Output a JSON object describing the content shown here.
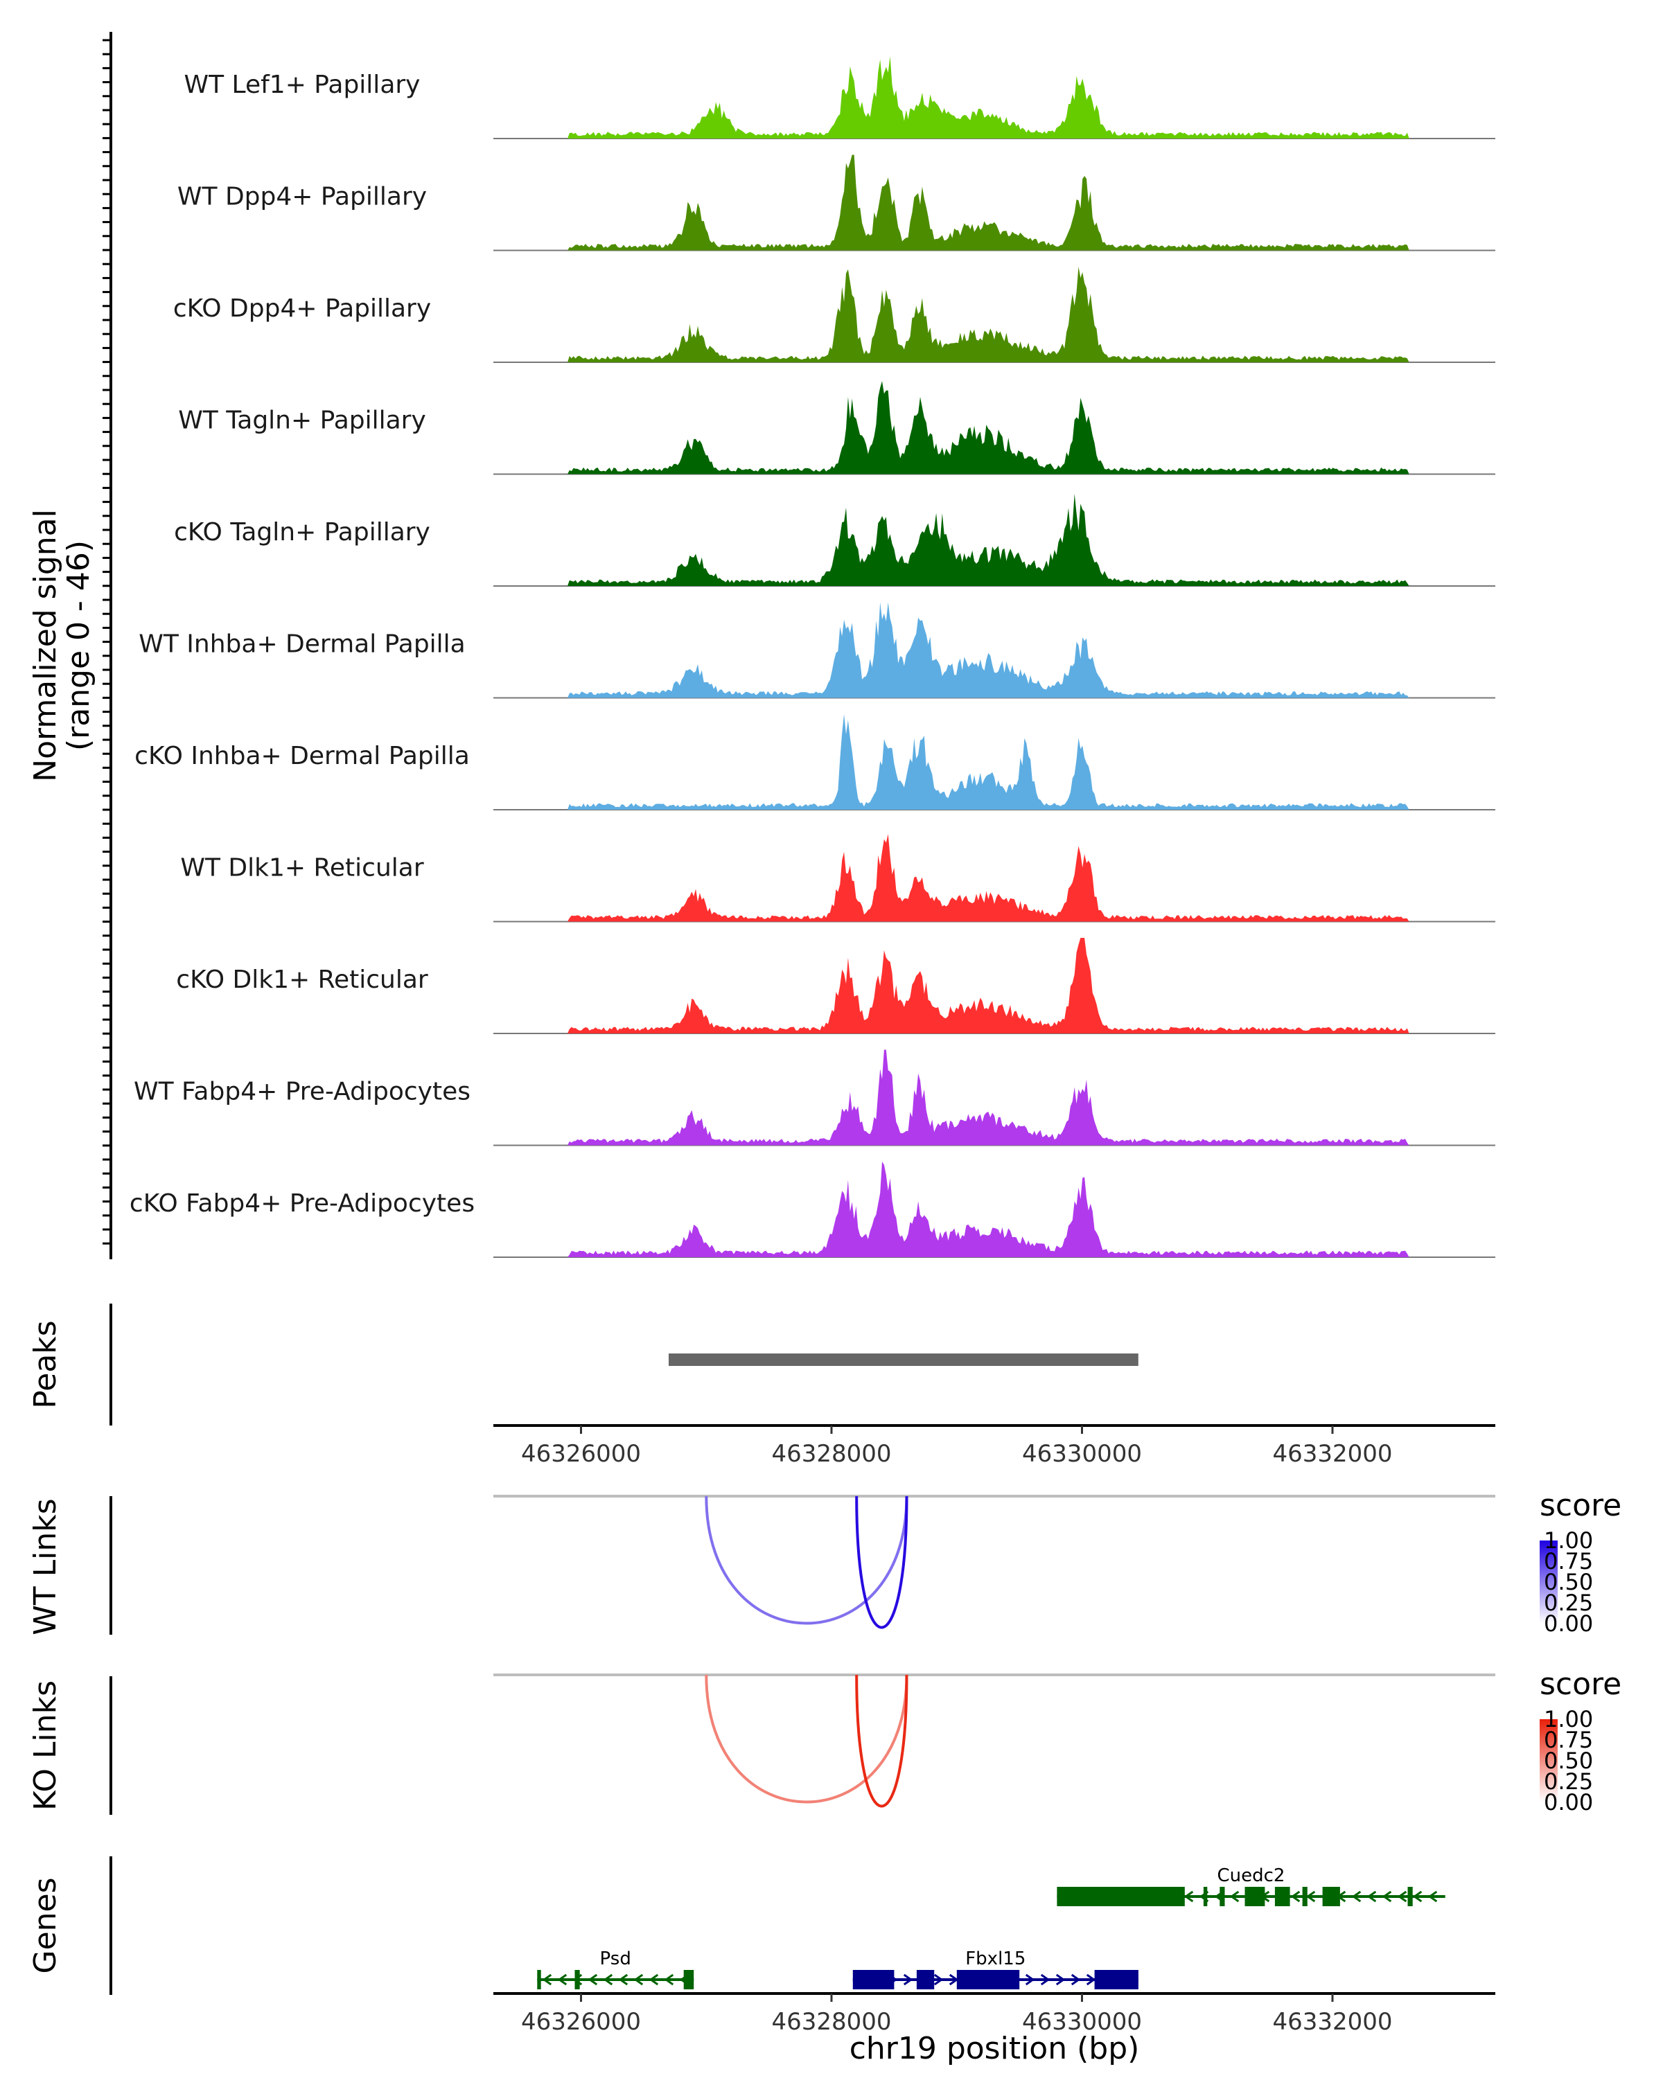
{
  "chart_data": {
    "type": "area",
    "region": {
      "chrom": "chr19",
      "start": 46325300,
      "end": 46333300
    },
    "xlabel": "chr19 position (bp)",
    "xticks": [
      46326000,
      46328000,
      46330000,
      46332000
    ],
    "signal_axis_label": "Normalized signal",
    "signal_axis_range": "(range 0 - 46)",
    "ylim": [
      0,
      46
    ],
    "tracks": [
      {
        "name": "WT Lef1+ Papillary",
        "color": "#66CC00",
        "peaks": [
          [
            46328150,
            28,
            70
          ],
          [
            46328430,
            36,
            70
          ],
          [
            46328750,
            18,
            110
          ],
          [
            46330000,
            26,
            90
          ],
          [
            46327070,
            14,
            90
          ],
          [
            46329200,
            10,
            200
          ]
        ]
      },
      {
        "name": "WT Dpp4+ Papillary",
        "color": "#4C8C00",
        "peaks": [
          [
            46328150,
            42,
            60
          ],
          [
            46328430,
            40,
            60
          ],
          [
            46328700,
            26,
            50
          ],
          [
            46330020,
            28,
            70
          ],
          [
            46326900,
            22,
            70
          ],
          [
            46329200,
            10,
            250
          ]
        ]
      },
      {
        "name": "cKO Dpp4+ Papillary",
        "color": "#4C8C00",
        "peaks": [
          [
            46328120,
            40,
            60
          ],
          [
            46328430,
            34,
            60
          ],
          [
            46328700,
            22,
            60
          ],
          [
            46330000,
            46,
            70
          ],
          [
            46326900,
            14,
            90
          ],
          [
            46329200,
            12,
            300
          ]
        ]
      },
      {
        "name": "WT Tagln+ Papillary",
        "color": "#006400",
        "peaks": [
          [
            46328170,
            36,
            60
          ],
          [
            46328420,
            46,
            60
          ],
          [
            46328700,
            30,
            70
          ],
          [
            46330000,
            30,
            70
          ],
          [
            46326900,
            14,
            80
          ],
          [
            46329200,
            18,
            250
          ]
        ]
      },
      {
        "name": "cKO Tagln+ Papillary",
        "color": "#006400",
        "peaks": [
          [
            46328120,
            30,
            80
          ],
          [
            46328420,
            28,
            80
          ],
          [
            46328800,
            28,
            120
          ],
          [
            46329950,
            34,
            110
          ],
          [
            46326900,
            12,
            100
          ],
          [
            46329300,
            14,
            300
          ]
        ]
      },
      {
        "name": "WT Inhba+ Dermal Papilla",
        "color": "#5DADE2",
        "peaks": [
          [
            46328120,
            38,
            70
          ],
          [
            46328420,
            44,
            70
          ],
          [
            46328700,
            30,
            90
          ],
          [
            46330000,
            24,
            90
          ],
          [
            46326900,
            12,
            100
          ],
          [
            46329200,
            16,
            300
          ]
        ]
      },
      {
        "name": "cKO Inhba+ Dermal Papilla",
        "color": "#5DADE2",
        "peaks": [
          [
            46328120,
            46,
            40
          ],
          [
            46328450,
            32,
            60
          ],
          [
            46328700,
            34,
            70
          ],
          [
            46329550,
            24,
            50
          ],
          [
            46330000,
            34,
            50
          ],
          [
            46329200,
            14,
            200
          ]
        ]
      },
      {
        "name": "WT Dlk1+ Reticular",
        "color": "#FF3030",
        "peaks": [
          [
            46328120,
            30,
            60
          ],
          [
            46328430,
            40,
            60
          ],
          [
            46328700,
            20,
            70
          ],
          [
            46330000,
            34,
            70
          ],
          [
            46326900,
            12,
            80
          ],
          [
            46329200,
            10,
            300
          ]
        ]
      },
      {
        "name": "cKO Dlk1+ Reticular",
        "color": "#FF3030",
        "peaks": [
          [
            46328120,
            30,
            70
          ],
          [
            46328430,
            32,
            70
          ],
          [
            46328700,
            20,
            80
          ],
          [
            46330000,
            44,
            70
          ],
          [
            46326900,
            12,
            80
          ],
          [
            46329200,
            12,
            300
          ]
        ]
      },
      {
        "name": "WT Fabp4+ Pre-Adipocytes",
        "color": "#B03AEC",
        "peaks": [
          [
            46328430,
            46,
            50
          ],
          [
            46328700,
            26,
            50
          ],
          [
            46328150,
            20,
            70
          ],
          [
            46330000,
            30,
            70
          ],
          [
            46326900,
            12,
            80
          ],
          [
            46329200,
            12,
            300
          ]
        ]
      },
      {
        "name": "cKO Fabp4+ Pre-Adipocytes",
        "color": "#B03AEC",
        "peaks": [
          [
            46328120,
            30,
            80
          ],
          [
            46328420,
            44,
            60
          ],
          [
            46328700,
            18,
            80
          ],
          [
            46330000,
            34,
            70
          ],
          [
            46326900,
            12,
            80
          ],
          [
            46329200,
            12,
            300
          ]
        ]
      }
    ],
    "peaks_track": {
      "label": "Peaks",
      "regions": [
        [
          46326700,
          46330450
        ]
      ],
      "color": "#666666"
    },
    "links": [
      {
        "label": "WT Links",
        "legend_title": "score",
        "color_low": "#FFFFFF",
        "color_high": "#1E00E0",
        "legend_ticks": [
          "1.00",
          "0.75",
          "0.50",
          "0.25",
          "0.00"
        ],
        "arcs": [
          {
            "start": 46327000,
            "end": 46328600,
            "score": 0.45
          },
          {
            "start": 46328200,
            "end": 46328600,
            "score": 0.95
          }
        ]
      },
      {
        "label": "KO Links",
        "legend_title": "score",
        "color_low": "#FFFFFF",
        "color_high": "#E8200A",
        "legend_ticks": [
          "1.00",
          "0.75",
          "0.50",
          "0.25",
          "0.00"
        ],
        "arcs": [
          {
            "start": 46327000,
            "end": 46328600,
            "score": 0.45
          },
          {
            "start": 46328200,
            "end": 46328600,
            "score": 0.95
          }
        ]
      }
    ],
    "genes_track": {
      "label": "Genes",
      "genes": [
        {
          "name": "Cuedc2",
          "start": 46329800,
          "end": 46332900,
          "strand": "-",
          "color": "#006400",
          "row": 0,
          "exons": [
            [
              46329800,
              46330820
            ],
            [
              46330970,
              46331000
            ],
            [
              46331100,
              46331140
            ],
            [
              46331300,
              46331460
            ],
            [
              46331540,
              46331660
            ],
            [
              46331760,
              46331800
            ],
            [
              46331920,
              46332060
            ],
            [
              46332600,
              46332640
            ]
          ]
        },
        {
          "name": "Psd",
          "start": 46325650,
          "end": 46326900,
          "strand": "-",
          "color": "#006400",
          "row": 1,
          "exons": [
            [
              46325650,
              46325680
            ],
            [
              46325950,
              46325990
            ],
            [
              46326820,
              46326900
            ]
          ]
        },
        {
          "name": "Fbxl15",
          "start": 46328170,
          "end": 46330450,
          "strand": "+",
          "color": "#00008B",
          "row": 1,
          "exons": [
            [
              46328170,
              46328500
            ],
            [
              46328680,
              46328820
            ],
            [
              46329000,
              46329500
            ],
            [
              46330100,
              46330450
            ]
          ]
        }
      ]
    }
  }
}
